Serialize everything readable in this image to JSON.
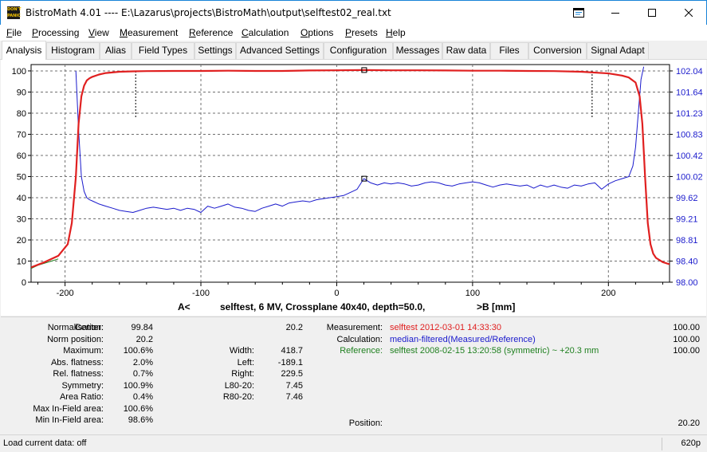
{
  "window": {
    "title": "BistroMath 4.01 ---- E:\\Lazarus\\projects\\BistroMath\\output\\selftest02_real.txt",
    "icon_text_top": "DON'T",
    "icon_text_bottom": "PANIC",
    "icons": [
      "app-icon",
      "window-icon",
      "minimize-icon",
      "maximize-icon",
      "close-icon"
    ]
  },
  "menu": [
    {
      "key": "F",
      "rest": "ile"
    },
    {
      "key": "P",
      "rest": "rocessing"
    },
    {
      "key": "V",
      "rest": "iew"
    },
    {
      "key": "M",
      "rest": "easurement"
    },
    {
      "key": "R",
      "rest": "eference"
    },
    {
      "key": "C",
      "rest": "alculation"
    },
    {
      "key": "O",
      "rest": "ptions"
    },
    {
      "key": "P",
      "rest": "resets"
    },
    {
      "key": "H",
      "rest": "elp"
    }
  ],
  "tabs": [
    "Analysis",
    "Histogram",
    "Alias",
    "Field Types",
    "Settings",
    "Advanced Settings",
    "Configuration",
    "Messages",
    "Raw data",
    "Files",
    "Conversion",
    "Signal Adapt"
  ],
  "active_tab": "Analysis",
  "chart_data": {
    "type": "line",
    "caption": "selftest, 6 MV, Crossplane 40x40, depth=50.0,",
    "caption_left": "A<",
    "caption_right": ">B  [mm]",
    "xlim": [
      -225,
      245
    ],
    "ylim_left": [
      0,
      103
    ],
    "ylim_right": [
      98.0,
      102.16
    ],
    "x_ticks": [
      -200,
      -100,
      0,
      100,
      200
    ],
    "y_ticks_left": [
      0,
      10,
      20,
      30,
      40,
      50,
      60,
      70,
      80,
      90,
      100
    ],
    "y_ticks_right": [
      "98.00",
      "98.40",
      "98.81",
      "99.21",
      "99.62",
      "100.02",
      "100.42",
      "100.83",
      "101.23",
      "101.64",
      "102.04"
    ],
    "colors": {
      "measured": "#e02020",
      "reference": "#208020",
      "calculation": "#1a1acc",
      "grid": "#707070"
    },
    "series": [
      {
        "key": "measured",
        "x": [
          -225,
          -215,
          -205,
          -198,
          -195,
          -192,
          -190,
          -188,
          -186,
          -184,
          -182,
          -180,
          -175,
          -170,
          -160,
          -150,
          -140,
          -120,
          -100,
          -80,
          -60,
          -40,
          -20,
          0,
          20,
          40,
          60,
          80,
          100,
          120,
          140,
          160,
          180,
          200,
          210,
          215,
          220,
          223,
          225,
          227,
          229,
          231,
          233,
          235,
          240,
          245
        ],
        "y": [
          7.0,
          9.5,
          12.5,
          18,
          28,
          50,
          75,
          88,
          93,
          95.5,
          96.5,
          97.2,
          98.3,
          99.0,
          99.6,
          99.8,
          99.9,
          100.0,
          100.0,
          100.1,
          100.0,
          100.0,
          100.2,
          100.3,
          100.4,
          100.3,
          100.3,
          100.2,
          100.1,
          100.1,
          100.0,
          99.9,
          99.6,
          98.8,
          97.8,
          96.9,
          94.5,
          88,
          75,
          50,
          28,
          18,
          13.5,
          11.5,
          9.5,
          8.5
        ]
      },
      {
        "key": "reference",
        "x": [
          -225,
          -220,
          -215,
          -210,
          -205
        ],
        "y": [
          6.5,
          8.0,
          9.0,
          10.0,
          11.0
        ]
      },
      {
        "key": "calculation",
        "x": [
          -192,
          -190,
          -188,
          -186,
          -184,
          -182,
          -180,
          -175,
          -170,
          -165,
          -160,
          -155,
          -150,
          -145,
          -140,
          -135,
          -130,
          -125,
          -120,
          -115,
          -110,
          -105,
          -100,
          -95,
          -90,
          -85,
          -80,
          -75,
          -70,
          -65,
          -60,
          -55,
          -50,
          -45,
          -40,
          -35,
          -30,
          -25,
          -20,
          -15,
          -10,
          -5,
          0,
          5,
          10,
          15,
          20,
          25,
          30,
          35,
          40,
          45,
          50,
          55,
          60,
          65,
          70,
          75,
          80,
          85,
          90,
          95,
          100,
          105,
          110,
          115,
          120,
          125,
          130,
          135,
          140,
          145,
          150,
          155,
          160,
          165,
          170,
          175,
          180,
          185,
          190,
          195,
          200,
          205,
          210,
          215,
          218,
          220,
          222,
          224,
          226
        ],
        "y": [
          100.0,
          72,
          50,
          43,
          40,
          39,
          38.5,
          37,
          36,
          35,
          34,
          33.5,
          33,
          34,
          35,
          35.5,
          35,
          34.5,
          35,
          34,
          35,
          34.5,
          33,
          36,
          35,
          36,
          37,
          35.5,
          35,
          34,
          33.5,
          35,
          36,
          37,
          36,
          37.5,
          38,
          38.5,
          38,
          39,
          39.5,
          40,
          40.5,
          41,
          42.5,
          44,
          49,
          47,
          46,
          47,
          46.5,
          47,
          46.5,
          45.5,
          46,
          47,
          47.5,
          47,
          46,
          45.5,
          46.5,
          47,
          47.5,
          47,
          46,
          45,
          46,
          46.5,
          46,
          45.5,
          46,
          44.5,
          46,
          45,
          46,
          45,
          44.5,
          46,
          45.5,
          46.5,
          47,
          44,
          46.5,
          48,
          49,
          50,
          55,
          64,
          80,
          96,
          102
        ]
      }
    ],
    "markers": [
      {
        "series": "measured",
        "x": 20.2,
        "y": 100.4
      },
      {
        "series": "calculation",
        "x": 20.2,
        "y": 49
      }
    ],
    "field_markers_x": [
      -148,
      188
    ]
  },
  "info": {
    "col1": [
      {
        "label": "Normalisation:",
        "value": "99.84"
      },
      {
        "label": "Norm position:",
        "value": "20.2"
      },
      {
        "label": "Maximum:",
        "value": "100.6%"
      },
      {
        "label": "Abs. flatness:",
        "value": "2.0%"
      },
      {
        "label": "Rel. flatness:",
        "value": "0.7%"
      },
      {
        "label": "Symmetry:",
        "value": "100.9%"
      },
      {
        "label": "Area Ratio:",
        "value": "0.4%"
      },
      {
        "label": "Max In-Field area:",
        "value": "100.6%"
      },
      {
        "label": "Min In-Field area:",
        "value": "98.6%"
      }
    ],
    "center": {
      "label": "Center:",
      "value": "20.2"
    },
    "col2": [
      {
        "label": "Width:",
        "value": "418.7"
      },
      {
        "label": "Left:",
        "value": "-189.1"
      },
      {
        "label": "Right:",
        "value": "229.5"
      },
      {
        "label": "L80-20:",
        "value": "7.45"
      },
      {
        "label": "R80-20:",
        "value": "7.46"
      }
    ],
    "col3": [
      {
        "label": "Measurement:",
        "value": "selftest 2012-03-01 14:33:30",
        "color": "#e02020",
        "right": "100.00"
      },
      {
        "label": "Calculation:",
        "value": "median-filtered(Measured/Reference)",
        "color": "#1a1acc",
        "right": "100.00"
      },
      {
        "label": "Reference:",
        "value": "selftest 2008-02-15 13:20:58 (symmetric) ~ +20.3 mm",
        "color": "#208020",
        "right": "100.00"
      }
    ],
    "position": {
      "label": "Position:",
      "value": "20.20"
    }
  },
  "status": {
    "left": "Load current data: off",
    "right": "620p"
  }
}
